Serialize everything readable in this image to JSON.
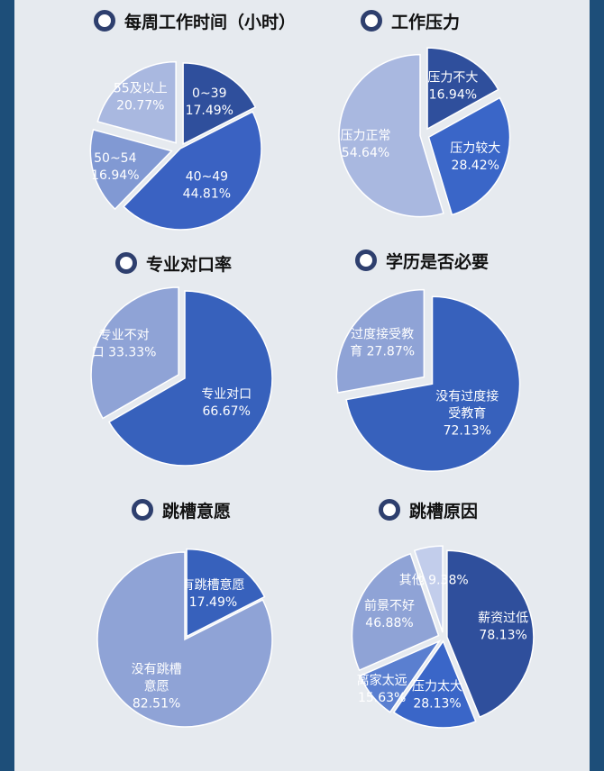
{
  "colors": {
    "background_frame": "#1d4e79",
    "panel": "#e6eaef",
    "title_bullet": "#2e3f6e",
    "dark_blue": "#2f4f9c",
    "mid_blue": "#3e6dc5",
    "light_blue": "#8fa3d6",
    "pale_blue": "#b4c1e4"
  },
  "chart_data": [
    {
      "type": "pie",
      "title": "每周工作时间（小时）",
      "slices": [
        {
          "label": "0~39\n17.49%",
          "value": 17.49,
          "color": "#2f4f9c"
        },
        {
          "label": "40~49\n44.81%",
          "value": 44.81,
          "color": "#3a62c2"
        },
        {
          "label": "50~54\n16.94%",
          "value": 16.94,
          "color": "#8199d3"
        },
        {
          "label": "55及以上\n20.77%",
          "value": 20.77,
          "color": "#a9b8e0"
        }
      ]
    },
    {
      "type": "pie",
      "title": "工作压力",
      "slices": [
        {
          "label": "压力不大\n16.94%",
          "value": 16.94,
          "color": "#2f4f9c"
        },
        {
          "label": "压力较大\n28.42%",
          "value": 28.42,
          "color": "#3a66c8"
        },
        {
          "label": "压力正常\n54.64%",
          "value": 54.64,
          "color": "#a9b8e0"
        }
      ]
    },
    {
      "type": "pie",
      "title": "专业对口率",
      "slices": [
        {
          "label": "专业对口\n66.67%",
          "value": 66.67,
          "color": "#3761bc"
        },
        {
          "label": "专业不对\n口 33.33%",
          "value": 33.33,
          "color": "#8fa3d6"
        }
      ]
    },
    {
      "type": "pie",
      "title": "学历是否必要",
      "slices": [
        {
          "label": "没有过度接\n受教育\n72.13%",
          "value": 72.13,
          "color": "#3761bc"
        },
        {
          "label": "过度接受教\n育 27.87%",
          "value": 27.87,
          "color": "#8fa3d6"
        }
      ]
    },
    {
      "type": "pie",
      "title": "跳槽意愿",
      "slices": [
        {
          "label": "有跳槽意愿\n17.49%",
          "value": 17.49,
          "color": "#3761bc"
        },
        {
          "label": "没有跳槽\n意愿\n82.51%",
          "value": 82.51,
          "color": "#8fa3d6"
        }
      ]
    },
    {
      "type": "pie",
      "title": "跳槽原因",
      "slices": [
        {
          "label": "薪资过低\n78.13%",
          "value": 78.13,
          "color": "#2f4f9c"
        },
        {
          "label": "压力太大\n28.13%",
          "value": 28.13,
          "color": "#3a66c8"
        },
        {
          "label": "离家太远\n15.63%",
          "value": 15.63,
          "color": "#5a7fd0"
        },
        {
          "label": "前景不好\n46.88%",
          "value": 46.88,
          "color": "#8fa3d6"
        },
        {
          "label": "其他 9.38%",
          "value": 9.38,
          "color": "#c2cdeb"
        }
      ]
    }
  ]
}
